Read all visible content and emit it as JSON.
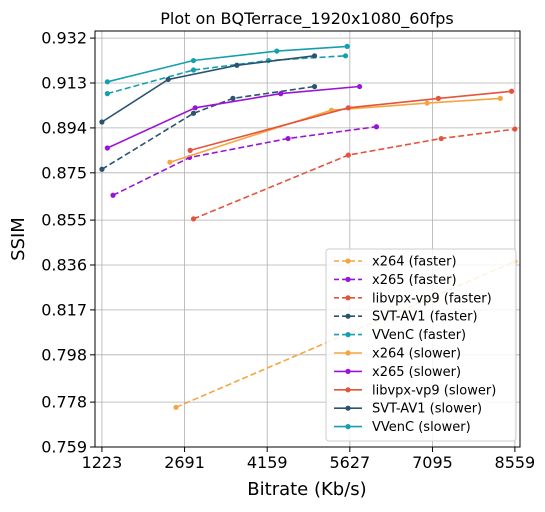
{
  "chart_data": {
    "type": "line",
    "title": "Plot on BQTerrace_1920x1080_60fps",
    "xlabel": "Bitrate (Kb/s)",
    "ylabel": "SSIM",
    "xlim": [
      1100,
      8650
    ],
    "ylim": [
      0.759,
      0.935
    ],
    "xticks": [
      1223,
      2691,
      4159,
      5627,
      7095,
      8559
    ],
    "xtick_labels": [
      "1223",
      "2691",
      "4159",
      "5627",
      "7095",
      "8559"
    ],
    "yticks": [
      0.759,
      0.778,
      0.798,
      0.817,
      0.836,
      0.855,
      0.875,
      0.894,
      0.913,
      0.932
    ],
    "ytick_labels": [
      "0.759",
      "0.778",
      "0.798",
      "0.817",
      "0.836",
      "0.855",
      "0.875",
      "0.894",
      "0.913",
      "0.932"
    ],
    "grid": true,
    "legend_position": "lower-right",
    "series": [
      {
        "name": "x264 (faster)",
        "color": "#f5a540",
        "dash": "dashed",
        "x": [
          2540,
          8559
        ],
        "y": [
          0.7758,
          0.8375
        ]
      },
      {
        "name": "x265 (faster)",
        "color": "#9a14d8",
        "dash": "dashed",
        "x": [
          1420,
          2780,
          4530,
          6100
        ],
        "y": [
          0.8655,
          0.8815,
          0.8895,
          0.8945
        ]
      },
      {
        "name": "libvpx-vp9 (faster)",
        "color": "#e5533c",
        "dash": "dashed",
        "x": [
          2850,
          5600,
          7250,
          8559
        ],
        "y": [
          0.8555,
          0.8825,
          0.8895,
          0.8935
        ]
      },
      {
        "name": "SVT-AV1 (faster)",
        "color": "#2a5370",
        "dash": "dashed",
        "x": [
          1223,
          2850,
          3550,
          5000
        ],
        "y": [
          0.8765,
          0.9002,
          0.9065,
          0.9115
        ]
      },
      {
        "name": "VVenC (faster)",
        "color": "#149fb0",
        "dash": "dashed",
        "x": [
          1320,
          2850,
          4180,
          5550
        ],
        "y": [
          0.9085,
          0.9185,
          0.9225,
          0.9245
        ]
      },
      {
        "name": "x264 (slower)",
        "color": "#f5a540",
        "dash": "solid",
        "x": [
          2430,
          5300,
          7000,
          8300
        ],
        "y": [
          0.8795,
          0.9015,
          0.9045,
          0.9065
        ]
      },
      {
        "name": "x265 (slower)",
        "color": "#9a14d8",
        "dash": "solid",
        "x": [
          1320,
          2880,
          4400,
          5800
        ],
        "y": [
          0.8855,
          0.9025,
          0.9085,
          0.9115
        ]
      },
      {
        "name": "libvpx-vp9 (slower)",
        "color": "#e5533c",
        "dash": "solid",
        "x": [
          2790,
          5600,
          7200,
          8500
        ],
        "y": [
          0.8845,
          0.9025,
          0.9065,
          0.9095
        ]
      },
      {
        "name": "SVT-AV1 (slower)",
        "color": "#2a5370",
        "dash": "solid",
        "x": [
          1223,
          2400,
          3620,
          5000
        ],
        "y": [
          0.8965,
          0.9145,
          0.9205,
          0.9245
        ]
      },
      {
        "name": "VVenC (slower)",
        "color": "#149fb0",
        "dash": "solid",
        "x": [
          1320,
          2850,
          4330,
          5580
        ],
        "y": [
          0.9135,
          0.9225,
          0.9265,
          0.9285
        ]
      }
    ]
  }
}
